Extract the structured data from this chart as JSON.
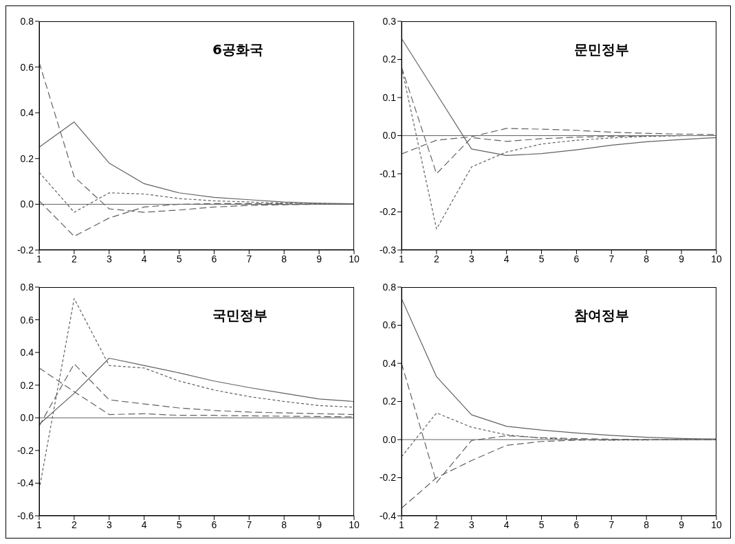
{
  "chart_data": [
    {
      "type": "line",
      "title": "6공화국",
      "x": [
        1,
        2,
        3,
        4,
        5,
        6,
        7,
        8,
        9,
        10
      ],
      "xlim": [
        1,
        10
      ],
      "xticks": [
        1,
        2,
        3,
        4,
        5,
        6,
        7,
        8,
        9,
        10
      ],
      "ylim": [
        -0.2,
        0.8
      ],
      "yticks": [
        {
          "value": -0.2,
          "label": "-0.2"
        },
        {
          "value": 0,
          "label": "0.0"
        },
        {
          "value": 0.2,
          "label": "0.2"
        },
        {
          "value": 0.4,
          "label": "0.4"
        },
        {
          "value": 0.6,
          "label": "0.6"
        },
        {
          "value": 0.8,
          "label": "0.8"
        }
      ],
      "grid": false,
      "legend": false,
      "marker": "none",
      "ref_lines": [
        {
          "axis": "y",
          "value": 0,
          "color": "#606060"
        }
      ],
      "series": [
        {
          "color": "#606060",
          "line_style": "solid",
          "values": [
            0.25,
            0.36,
            0.18,
            0.09,
            0.05,
            0.03,
            0.02,
            0.01,
            0.005,
            0.002
          ]
        },
        {
          "color": "#606060",
          "line_style": "dashed",
          "values": [
            0.62,
            0.12,
            -0.02,
            -0.035,
            -0.025,
            -0.012,
            -0.005,
            -0.002,
            0,
            0
          ]
        },
        {
          "color": "#606060",
          "line_style": "dotted",
          "values": [
            0.14,
            -0.035,
            0.05,
            0.045,
            0.025,
            0.015,
            0.01,
            0.005,
            0.003,
            0.002
          ]
        },
        {
          "color": "#606060",
          "line_style": "dashed",
          "values": [
            0.015,
            -0.14,
            -0.06,
            -0.012,
            0,
            0.003,
            0.003,
            0.002,
            0.001,
            0
          ]
        }
      ]
    },
    {
      "type": "line",
      "title": "문민정부",
      "x": [
        1,
        2,
        3,
        4,
        5,
        6,
        7,
        8,
        9,
        10
      ],
      "xlim": [
        1,
        10
      ],
      "xticks": [
        1,
        2,
        3,
        4,
        5,
        6,
        7,
        8,
        9,
        10
      ],
      "ylim": [
        -0.3,
        0.3
      ],
      "yticks": [
        {
          "value": -0.3,
          "label": "-0.3"
        },
        {
          "value": -0.2,
          "label": "-0.2"
        },
        {
          "value": -0.1,
          "label": "-0.1"
        },
        {
          "value": 0,
          "label": "0.0"
        },
        {
          "value": 0.1,
          "label": "0.1"
        },
        {
          "value": 0.2,
          "label": "0.2"
        },
        {
          "value": 0.3,
          "label": "0.3"
        }
      ],
      "grid": false,
      "legend": false,
      "marker": "none",
      "ref_lines": [
        {
          "axis": "y",
          "value": 0,
          "color": "#606060"
        }
      ],
      "series": [
        {
          "color": "#606060",
          "line_style": "solid",
          "values": [
            0.255,
            0.11,
            -0.035,
            -0.052,
            -0.047,
            -0.037,
            -0.025,
            -0.016,
            -0.01,
            -0.005
          ]
        },
        {
          "color": "#606060",
          "line_style": "dashed",
          "values": [
            0.18,
            -0.1,
            -0.005,
            -0.015,
            -0.008,
            -0.004,
            -0.002,
            -0.001,
            0,
            0
          ]
        },
        {
          "color": "#606060",
          "line_style": "dotted",
          "values": [
            0.18,
            -0.245,
            -0.082,
            -0.043,
            -0.022,
            -0.012,
            -0.006,
            -0.002,
            0,
            0
          ]
        },
        {
          "color": "#606060",
          "line_style": "dashed",
          "values": [
            -0.048,
            -0.012,
            -0.003,
            0.019,
            0.017,
            0.014,
            0.009,
            0.006,
            0.004,
            0.003
          ]
        }
      ]
    },
    {
      "type": "line",
      "title": "국민정부",
      "x": [
        1,
        2,
        3,
        4,
        5,
        6,
        7,
        8,
        9,
        10
      ],
      "xlim": [
        1,
        10
      ],
      "xticks": [
        1,
        2,
        3,
        4,
        5,
        6,
        7,
        8,
        9,
        10
      ],
      "ylim": [
        -0.6,
        0.8
      ],
      "yticks": [
        {
          "value": -0.6,
          "label": "-0.6"
        },
        {
          "value": -0.4,
          "label": "-0.4"
        },
        {
          "value": -0.2,
          "label": "-0.2"
        },
        {
          "value": 0,
          "label": "0.0"
        },
        {
          "value": 0.2,
          "label": "0.2"
        },
        {
          "value": 0.4,
          "label": "0.4"
        },
        {
          "value": 0.6,
          "label": "0.6"
        },
        {
          "value": 0.8,
          "label": "0.8"
        }
      ],
      "grid": false,
      "legend": false,
      "marker": "none",
      "ref_lines": [
        {
          "axis": "y",
          "value": 0,
          "color": "#606060"
        }
      ],
      "series": [
        {
          "color": "#606060",
          "line_style": "solid",
          "values": [
            -0.04,
            0.15,
            0.365,
            0.32,
            0.275,
            0.225,
            0.185,
            0.15,
            0.115,
            0.1
          ]
        },
        {
          "color": "#606060",
          "line_style": "dotted",
          "values": [
            -0.44,
            0.73,
            0.32,
            0.305,
            0.225,
            0.17,
            0.13,
            0.1,
            0.075,
            0.065
          ]
        },
        {
          "color": "#606060",
          "line_style": "dashed",
          "values": [
            -0.05,
            0.33,
            0.11,
            0.085,
            0.06,
            0.045,
            0.035,
            0.03,
            0.025,
            0.02
          ]
        },
        {
          "color": "#606060",
          "line_style": "dashed",
          "values": [
            0.305,
            0.16,
            0.02,
            0.025,
            0.015,
            0.015,
            0.012,
            0.01,
            0.008,
            0.006
          ]
        }
      ]
    },
    {
      "type": "line",
      "title": "참여정부",
      "x": [
        1,
        2,
        3,
        4,
        5,
        6,
        7,
        8,
        9,
        10
      ],
      "xlim": [
        1,
        10
      ],
      "xticks": [
        1,
        2,
        3,
        4,
        5,
        6,
        7,
        8,
        9,
        10
      ],
      "ylim": [
        -0.4,
        0.8
      ],
      "yticks": [
        {
          "value": -0.4,
          "label": "-0.4"
        },
        {
          "value": -0.2,
          "label": "-0.2"
        },
        {
          "value": 0,
          "label": "0.0"
        },
        {
          "value": 0.2,
          "label": "0.2"
        },
        {
          "value": 0.4,
          "label": "0.4"
        },
        {
          "value": 0.6,
          "label": "0.6"
        },
        {
          "value": 0.8,
          "label": "0.8"
        }
      ],
      "grid": false,
      "legend": false,
      "marker": "none",
      "ref_lines": [
        {
          "axis": "y",
          "value": 0,
          "color": "#606060"
        }
      ],
      "series": [
        {
          "color": "#606060",
          "line_style": "solid",
          "values": [
            0.74,
            0.33,
            0.13,
            0.07,
            0.05,
            0.035,
            0.022,
            0.012,
            0.006,
            0.003
          ]
        },
        {
          "color": "#606060",
          "line_style": "dashed",
          "values": [
            0.4,
            -0.225,
            -0.005,
            0.02,
            0.01,
            0.005,
            0.002,
            0,
            0,
            0
          ]
        },
        {
          "color": "#606060",
          "line_style": "dotted",
          "values": [
            -0.09,
            0.14,
            0.065,
            0.025,
            0.008,
            0,
            -0.003,
            -0.002,
            -0.001,
            0
          ]
        },
        {
          "color": "#606060",
          "line_style": "dashed",
          "values": [
            -0.36,
            -0.2,
            -0.11,
            -0.03,
            -0.01,
            -0.003,
            -0.002,
            -0.001,
            0,
            0
          ]
        }
      ]
    }
  ]
}
